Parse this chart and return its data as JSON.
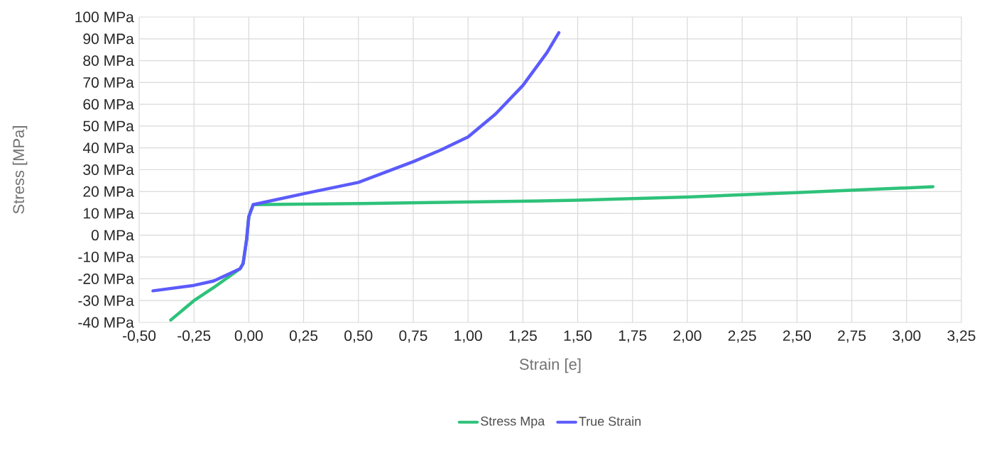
{
  "chart_data": {
    "type": "line",
    "xlabel": "Strain [e]",
    "ylabel": "Stress [MPa]",
    "xlim": [
      -0.5,
      3.25
    ],
    "ylim": [
      -40,
      100
    ],
    "xticks": [
      {
        "value": -0.5,
        "label": "-0,50"
      },
      {
        "value": -0.25,
        "label": "-0,25"
      },
      {
        "value": 0,
        "label": "0,00"
      },
      {
        "value": 0.25,
        "label": "0,25"
      },
      {
        "value": 0.5,
        "label": "0,50"
      },
      {
        "value": 0.75,
        "label": "0,75"
      },
      {
        "value": 1,
        "label": "1,00"
      },
      {
        "value": 1.25,
        "label": "1,25"
      },
      {
        "value": 1.5,
        "label": "1,50"
      },
      {
        "value": 1.75,
        "label": "1,75"
      },
      {
        "value": 2,
        "label": "2,00"
      },
      {
        "value": 2.25,
        "label": "2,25"
      },
      {
        "value": 2.5,
        "label": "2,50"
      },
      {
        "value": 2.75,
        "label": "2,75"
      },
      {
        "value": 3,
        "label": "3,00"
      },
      {
        "value": 3.25,
        "label": "3,25"
      }
    ],
    "yticks": [
      {
        "value": -40,
        "label": "-40 MPa"
      },
      {
        "value": -30,
        "label": "-30 MPa"
      },
      {
        "value": -20,
        "label": "-20 MPa"
      },
      {
        "value": -10,
        "label": "-10 MPa"
      },
      {
        "value": 0,
        "label": "0 MPa"
      },
      {
        "value": 10,
        "label": "10 MPa"
      },
      {
        "value": 20,
        "label": "20 MPa"
      },
      {
        "value": 30,
        "label": "30 MPa"
      },
      {
        "value": 40,
        "label": "40 MPa"
      },
      {
        "value": 50,
        "label": "50 MPa"
      },
      {
        "value": 60,
        "label": "60 MPa"
      },
      {
        "value": 70,
        "label": "70 MPa"
      },
      {
        "value": 80,
        "label": "80 MPa"
      },
      {
        "value": 90,
        "label": "90 MPa"
      },
      {
        "value": 100,
        "label": "100 MPa"
      }
    ],
    "grid": true,
    "legend": "bottom",
    "marker": "none",
    "line_style": "solid",
    "series": [
      {
        "name": "Stress Mpa",
        "color": "#2ec27a",
        "x": [
          -0.356,
          -0.25,
          -0.16,
          -0.04,
          -0.026,
          -0.01,
          0,
          0.02,
          0.5,
          1.0,
          1.5,
          2.0,
          2.5,
          3.12
        ],
        "values": [
          -38.9,
          -30,
          -24,
          -15.4,
          -13,
          -2,
          8.5,
          14,
          14.5,
          15.2,
          16,
          17.5,
          19.5,
          22.2
        ]
      },
      {
        "name": "True Strain",
        "color": "#5b5bfc",
        "x": [
          -0.437,
          -0.25,
          -0.16,
          -0.04,
          -0.026,
          -0.01,
          0,
          0.02,
          0.25,
          0.5,
          0.75,
          0.875,
          1.0,
          1.125,
          1.25,
          1.36,
          1.414
        ],
        "values": [
          -25.5,
          -23,
          -21,
          -15.4,
          -13,
          -2,
          8.5,
          14,
          19,
          24.2,
          33.7,
          39,
          45,
          55.5,
          68.6,
          83.7,
          92.8
        ]
      }
    ]
  }
}
